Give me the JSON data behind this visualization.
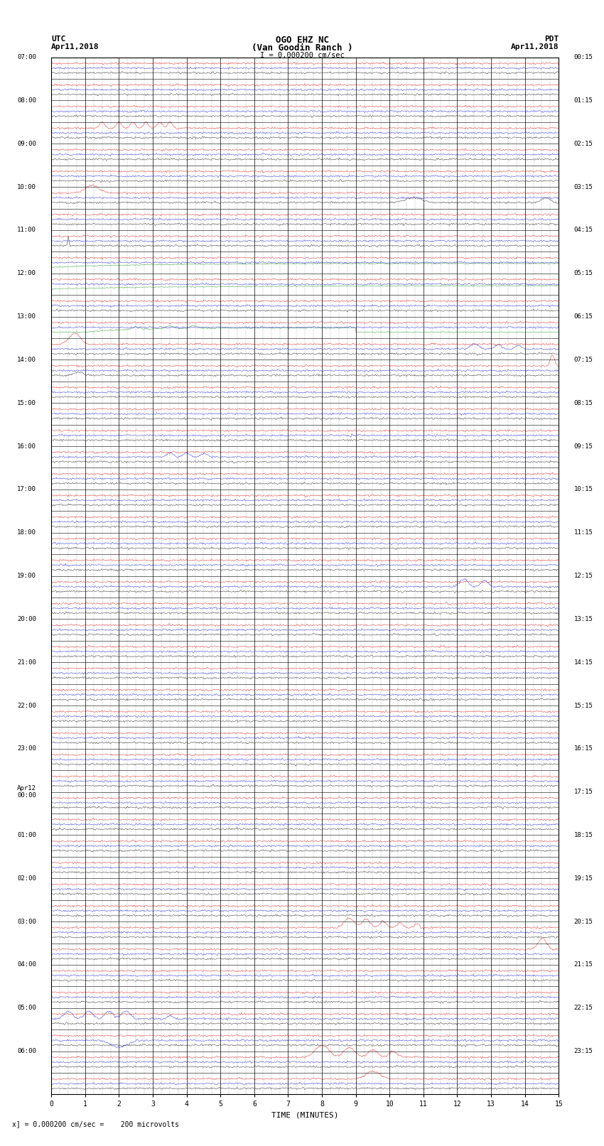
{
  "title_line1": "OGO EHZ NC",
  "title_line2": "(Van Goodin Ranch )",
  "title_line3": "I = 0.000200 cm/sec",
  "bottom_label": "TIME (MINUTES)",
  "bottom_note": "x] = 0.000200 cm/sec =    200 microvolts",
  "xlim": [
    0,
    15
  ],
  "num_rows": 48,
  "fig_width": 8.5,
  "fig_height": 16.13,
  "background_color": "#ffffff",
  "colors": [
    "#000000",
    "#0000cc",
    "#cc0000"
  ],
  "green": "#008800",
  "left_times": [
    "07:00",
    "",
    "08:00",
    "",
    "09:00",
    "",
    "10:00",
    "",
    "11:00",
    "",
    "12:00",
    "",
    "13:00",
    "",
    "14:00",
    "",
    "15:00",
    "",
    "16:00",
    "",
    "17:00",
    "",
    "18:00",
    "",
    "19:00",
    "",
    "20:00",
    "",
    "21:00",
    "",
    "22:00",
    "",
    "23:00",
    "",
    "Apr12\n00:00",
    "",
    "01:00",
    "",
    "02:00",
    "",
    "03:00",
    "",
    "04:00",
    "",
    "05:00",
    "",
    "06:00",
    ""
  ],
  "right_times": [
    "00:15",
    "",
    "01:15",
    "",
    "02:15",
    "",
    "03:15",
    "",
    "04:15",
    "",
    "05:15",
    "",
    "06:15",
    "",
    "07:15",
    "",
    "08:15",
    "",
    "09:15",
    "",
    "10:15",
    "",
    "11:15",
    "",
    "12:15",
    "",
    "13:15",
    "",
    "14:15",
    "",
    "15:15",
    "",
    "16:15",
    "",
    "17:15",
    "",
    "18:15",
    "",
    "19:15",
    "",
    "20:15",
    "",
    "21:15",
    "",
    "22:15",
    "",
    "23:15",
    ""
  ]
}
